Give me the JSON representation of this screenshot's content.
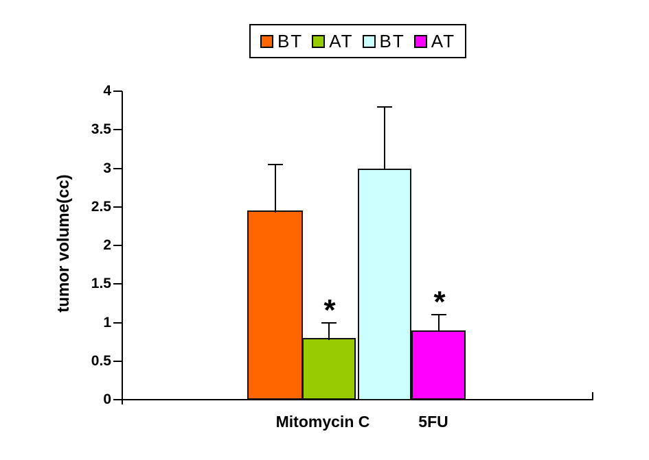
{
  "legend": {
    "items": [
      {
        "label": "BT",
        "color": "#FF6600"
      },
      {
        "label": "AT",
        "color": "#99CC00"
      },
      {
        "label": "BT",
        "color": "#CCFFFF"
      },
      {
        "label": "AT",
        "color": "#FF00FF"
      }
    ]
  },
  "chart_data": {
    "type": "bar",
    "title": "",
    "xlabel": "",
    "ylabel": "tumor volume(cc)",
    "ylim": [
      0,
      4
    ],
    "yticks": [
      0,
      0.5,
      1,
      1.5,
      2,
      2.5,
      3,
      3.5,
      4
    ],
    "grid": false,
    "legend_position": "top-center",
    "categories": [
      "Mitomycin C",
      "5FU"
    ],
    "significance_marker": "*",
    "series": [
      {
        "name": "BT",
        "category": "Mitomycin C",
        "value": 2.45,
        "error_plus": 0.6,
        "color": "#FF6600",
        "significant": false
      },
      {
        "name": "AT",
        "category": "Mitomycin C",
        "value": 0.8,
        "error_plus": 0.2,
        "color": "#99CC00",
        "significant": true
      },
      {
        "name": "BT",
        "category": "5FU",
        "value": 3.0,
        "error_plus": 0.8,
        "color": "#CCFFFF",
        "significant": false
      },
      {
        "name": "AT",
        "category": "5FU",
        "value": 0.9,
        "error_plus": 0.2,
        "color": "#FF00FF",
        "significant": true
      }
    ]
  }
}
